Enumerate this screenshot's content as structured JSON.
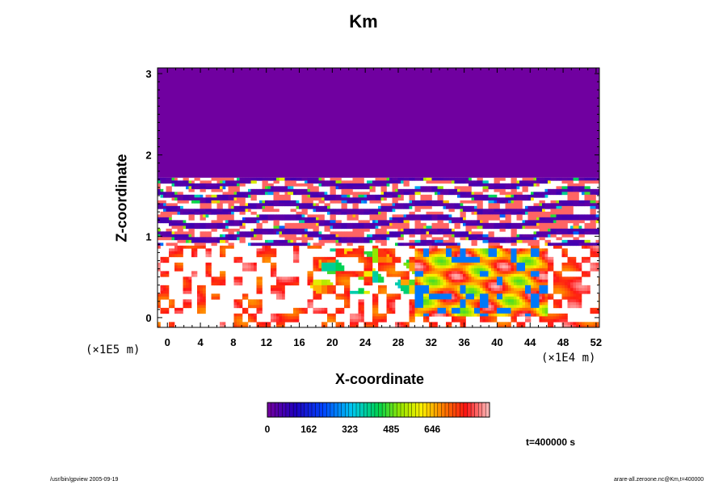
{
  "chart_data": {
    "type": "heatmap",
    "title": "Km",
    "xlabel": "X-coordinate",
    "ylabel": "Z-coordinate",
    "x_unit": "(×1E4 m)",
    "y_unit": "(×1E5 m)",
    "x_ticks": [
      "0",
      "4",
      "8",
      "12",
      "16",
      "20",
      "24",
      "28",
      "32",
      "36",
      "40",
      "44",
      "48",
      "52"
    ],
    "y_ticks": [
      "0",
      "1",
      "2",
      "3"
    ],
    "xlim": [
      -1.2,
      52.4
    ],
    "ylim": [
      -0.12,
      3.07
    ],
    "colorbar": {
      "ticks": [
        "0",
        "162",
        "323",
        "485",
        "646"
      ],
      "range": [
        0,
        870
      ],
      "colormap": "rainbow"
    },
    "fields": {
      "upper_uniform_value": 0,
      "turbulent_layer_z_range": [
        0.9,
        1.72
      ],
      "boundary_layer_z_range": [
        -0.12,
        0.9
      ],
      "max_activity_x_range": [
        30,
        46
      ]
    },
    "annotation": "t=400000 s",
    "footer_left": "/usr/bin/gpview 2005-09-19",
    "footer_right": "arare-all.zeroone.nc@Km,t=400000"
  },
  "colors": {
    "background": "#ffffff",
    "low_value": "#7000a0",
    "high_value": "#ff2020"
  }
}
